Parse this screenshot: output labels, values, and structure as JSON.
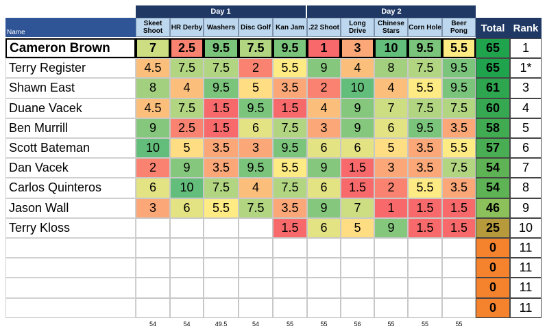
{
  "sheet": {
    "day1_label": "Day 1",
    "day2_label": "Day 2",
    "name_header": "Name",
    "total_header": "Total",
    "rank_header": "Rank",
    "events": [
      {
        "label": "Skeet Shoot"
      },
      {
        "label": "HR Derby"
      },
      {
        "label": "Washers"
      },
      {
        "label": "Disc Golf"
      },
      {
        "label": "Kan Jam"
      },
      {
        "label": ".22 Shoot"
      },
      {
        "label": "Long Drive"
      },
      {
        "label": "Chinese Stars"
      },
      {
        "label": "Corn Hole"
      },
      {
        "label": "Beer Pong"
      }
    ],
    "rows": [
      {
        "name": "Cameron Brown",
        "scores": [
          "7",
          "2.5",
          "9.5",
          "7.5",
          "9.5",
          "1",
          "3",
          "10",
          "9.5",
          "5.5"
        ],
        "total": "65",
        "rank": "1"
      },
      {
        "name": "Terry Register",
        "scores": [
          "4.5",
          "7.5",
          "7.5",
          "2",
          "5.5",
          "9",
          "4",
          "8",
          "7.5",
          "9.5"
        ],
        "total": "65",
        "rank": "1*"
      },
      {
        "name": "Shawn East",
        "scores": [
          "8",
          "4",
          "9.5",
          "5",
          "3.5",
          "2",
          "10",
          "4",
          "5.5",
          "9.5"
        ],
        "total": "61",
        "rank": "3"
      },
      {
        "name": "Duane Vacek",
        "scores": [
          "4.5",
          "7.5",
          "1.5",
          "9.5",
          "1.5",
          "4",
          "9",
          "7",
          "7.5",
          "7.5"
        ],
        "total": "60",
        "rank": "4"
      },
      {
        "name": "Ben Murrill",
        "scores": [
          "9",
          "2.5",
          "1.5",
          "6",
          "7.5",
          "3",
          "9",
          "6",
          "9.5",
          "3.5"
        ],
        "total": "58",
        "rank": "5"
      },
      {
        "name": "Scott Bateman",
        "scores": [
          "10",
          "5",
          "3.5",
          "3",
          "9.5",
          "6",
          "6",
          "5",
          "3.5",
          "5.5"
        ],
        "total": "57",
        "rank": "6"
      },
      {
        "name": "Dan Vacek",
        "scores": [
          "2",
          "9",
          "3.5",
          "9.5",
          "5.5",
          "9",
          "1.5",
          "3",
          "3.5",
          "7.5"
        ],
        "total": "54",
        "rank": "7"
      },
      {
        "name": "Carlos Quinteros",
        "scores": [
          "6",
          "10",
          "7.5",
          "4",
          "7.5",
          "6",
          "1.5",
          "2",
          "5.5",
          "3.5"
        ],
        "total": "54",
        "rank": "8"
      },
      {
        "name": "Jason Wall",
        "scores": [
          "3",
          "6",
          "5.5",
          "7.5",
          "3.5",
          "9",
          "7",
          "1",
          "1.5",
          "1.5"
        ],
        "total": "46",
        "rank": "9"
      },
      {
        "name": "Terry Kloss",
        "scores": [
          "",
          "",
          "",
          "",
          "1.5",
          "6",
          "5",
          "9",
          "1.5",
          "1.5"
        ],
        "total": "25",
        "rank": "10"
      },
      {
        "name": "",
        "scores": [
          "",
          "",
          "",
          "",
          "",
          "",
          "",
          "",
          "",
          ""
        ],
        "total": "0",
        "rank": "11"
      },
      {
        "name": "",
        "scores": [
          "",
          "",
          "",
          "",
          "",
          "",
          "",
          "",
          "",
          ""
        ],
        "total": "0",
        "rank": "11"
      },
      {
        "name": "",
        "scores": [
          "",
          "",
          "",
          "",
          "",
          "",
          "",
          "",
          "",
          ""
        ],
        "total": "0",
        "rank": "11"
      },
      {
        "name": "",
        "scores": [
          "",
          "",
          "",
          "",
          "",
          "",
          "",
          "",
          "",
          ""
        ],
        "total": "0",
        "rank": "11"
      }
    ],
    "column_totals": [
      "54",
      "54",
      "49.5",
      "54",
      "55",
      "55",
      "56",
      "55",
      "55",
      "55"
    ],
    "score_colors": {
      "1": "#f8696b",
      "1.5": "#f8696b",
      "2": "#f98370",
      "2.5": "#f98370",
      "3": "#fba777",
      "3.5": "#fba777",
      "4": "#fcbf7b",
      "4.5": "#fcbf7b",
      "5": "#ffdd82",
      "5.5": "#ffeb84",
      "6": "#e4e383",
      "7": "#cddd82",
      "7.5": "#b1d580",
      "8": "#a2d07f",
      "9": "#85c87d",
      "9.5": "#7bc47c",
      "10": "#63be7b"
    },
    "total_colors": {
      "65": "#20a34d",
      "61": "#2ea64f",
      "60": "#35a851",
      "58": "#41ab52",
      "57": "#48ad53",
      "54": "#5eb355",
      "46": "#8cc05a",
      "25": "#b79a3c",
      "0": "#f5832e"
    }
  }
}
